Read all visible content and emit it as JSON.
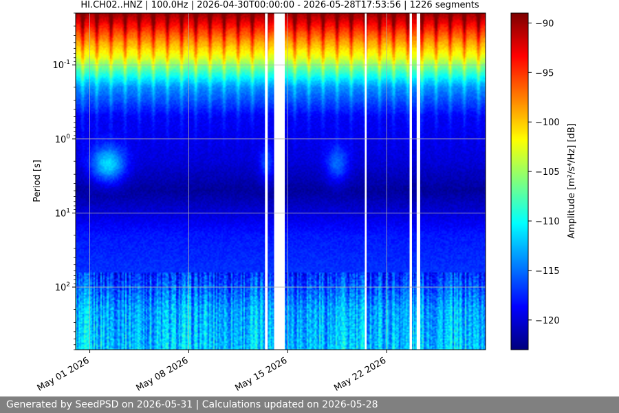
{
  "footer": {
    "text": "Generated by SeedPSD on 2026-05-31 | Calculations updated on 2026-05-28"
  },
  "chart_data": {
    "type": "heatmap",
    "title": "HI.CH02..HNZ | 100.0Hz | 2026-04-30T00:00:00 - 2026-05-28T17:53:56 | 1226 segments",
    "xlabel": "",
    "ylabel": "Period [s]",
    "x_axis": {
      "type": "date",
      "range": [
        "2026-04-30",
        "2026-05-29"
      ],
      "ticks": [
        "2026-05-01",
        "2026-05-08",
        "2026-05-15",
        "2026-05-22"
      ],
      "tick_labels": [
        "May 01 2026",
        "May 08 2026",
        "May 15 2026",
        "May 22 2026"
      ]
    },
    "y_axis": {
      "scale": "log",
      "inverted": true,
      "range": [
        0.02,
        700
      ],
      "ticks": [
        0.1,
        1,
        10,
        100
      ],
      "tick_labels": [
        "10^-1",
        "10^0",
        "10^1",
        "10^2"
      ]
    },
    "colorbar": {
      "label": "Amplitude [m²/s⁴/Hz] [dB]",
      "range": [
        -123,
        -89
      ],
      "ticks": [
        -90,
        -95,
        -100,
        -105,
        -110,
        -115,
        -120
      ],
      "colormap": "jet"
    },
    "data_gaps": [
      {
        "start": "2026-05-13T09:30",
        "end": "2026-05-13T14:00"
      },
      {
        "start": "2026-05-14T01:00",
        "end": "2026-05-14T19:00"
      },
      {
        "start": "2026-05-20T11:00",
        "end": "2026-05-20T14:00"
      },
      {
        "start": "2026-05-23T15:00",
        "end": "2026-05-23T19:00"
      },
      {
        "start": "2026-05-24T03:00",
        "end": "2026-05-24T09:00"
      }
    ],
    "noise_levels_db": [
      {
        "period_s": 0.02,
        "amplitude_db": -90
      },
      {
        "period_s": 0.03,
        "amplitude_db": -94
      },
      {
        "period_s": 0.05,
        "amplitude_db": -99
      },
      {
        "period_s": 0.08,
        "amplitude_db": -103
      },
      {
        "period_s": 0.12,
        "amplitude_db": -108
      },
      {
        "period_s": 0.2,
        "amplitude_db": -114
      },
      {
        "period_s": 0.5,
        "amplitude_db": -119
      },
      {
        "period_s": 2,
        "amplitude_db": -120
      },
      {
        "period_s": 5,
        "amplitude_db": -122
      },
      {
        "period_s": 20,
        "amplitude_db": -118
      },
      {
        "period_s": 70,
        "amplitude_db": -117
      },
      {
        "period_s": 200,
        "amplitude_db": -113
      },
      {
        "period_s": 700,
        "amplitude_db": -112
      }
    ],
    "grid": true,
    "legend": "none"
  }
}
